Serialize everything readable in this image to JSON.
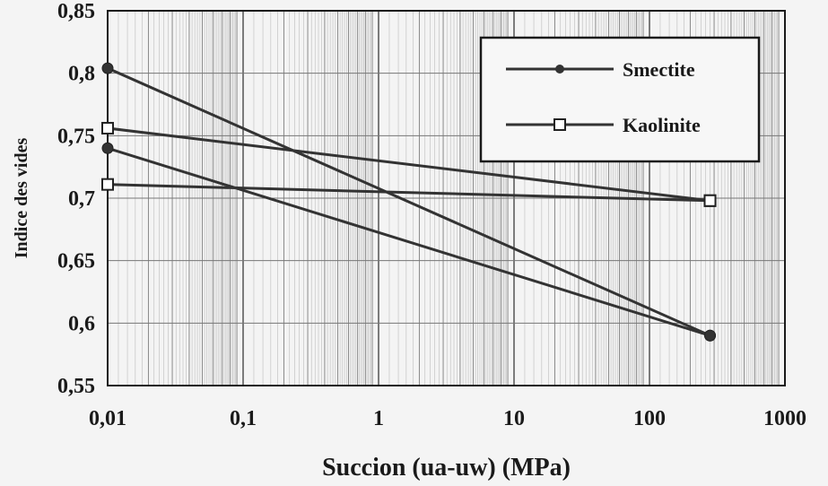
{
  "chart_data": {
    "type": "line",
    "xscale": "log",
    "xlim": [
      0.01,
      1000
    ],
    "ylim": [
      0.55,
      0.85
    ],
    "xticks": [
      "0,01",
      "0,1",
      "1",
      "10",
      "100",
      "1000"
    ],
    "yticks": [
      "0,55",
      "0,6",
      "0,65",
      "0,7",
      "0,75",
      "0,8",
      "0,85"
    ],
    "xlabel": "Succion (ua-uw) (MPa)",
    "ylabel": "Indice des vides",
    "grid": true,
    "legend_position": "top-right",
    "series": [
      {
        "name": "Smectite",
        "marker": "filled-circle",
        "color": "#333333",
        "segments": [
          {
            "x": [
              0.01,
              280
            ],
            "y": [
              0.804,
              0.59
            ]
          },
          {
            "x": [
              0.01,
              280
            ],
            "y": [
              0.74,
              0.59
            ]
          }
        ]
      },
      {
        "name": "Kaolinite",
        "marker": "open-square",
        "color": "#333333",
        "segments": [
          {
            "x": [
              0.01,
              280
            ],
            "y": [
              0.756,
              0.698
            ]
          },
          {
            "x": [
              0.01,
              280
            ],
            "y": [
              0.711,
              0.698
            ]
          }
        ]
      }
    ]
  }
}
